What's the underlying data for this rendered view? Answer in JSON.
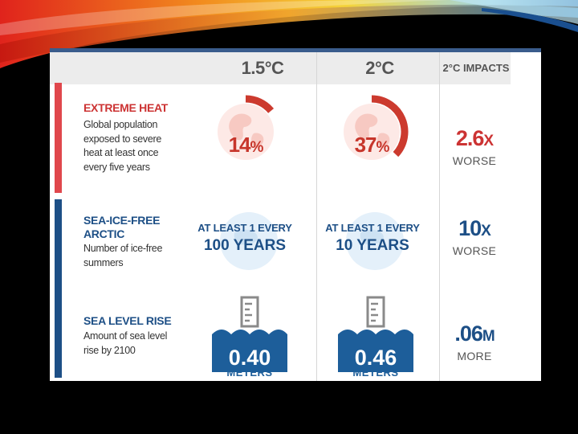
{
  "header": {
    "col1": "1.5°C",
    "col2": "2°C",
    "col3": "2°C IMPACTS"
  },
  "rows": {
    "heat": {
      "title": "EXTREME HEAT",
      "description": "Global population exposed to severe heat at least once every five years",
      "val15": "14",
      "val2": "37",
      "unit": "%",
      "val15_fraction": 0.14,
      "val2_fraction": 0.37,
      "impact_value": "2.6",
      "impact_suffix": "X",
      "impact_word": "WORSE"
    },
    "arctic": {
      "title_line1": "SEA-ICE-FREE",
      "title_line2": "ARCTIC",
      "description": "Number of ice-free summers",
      "val15_line1": "AT LEAST 1 EVERY",
      "val15_line2": "100 YEARS",
      "val2_line1": "AT LEAST 1 EVERY",
      "val2_line2": "10 YEARS",
      "impact_value": "10",
      "impact_suffix": "X",
      "impact_word": "WORSE"
    },
    "sea": {
      "title": "SEA LEVEL RISE",
      "description": "Amount of sea level rise by 2100",
      "val15": "0.40",
      "val2": "0.46",
      "unit_word": "METERS",
      "impact_value": ".06",
      "impact_suffix": "M",
      "impact_word": "MORE"
    }
  },
  "colors": {
    "heat_accent": "#e0474c",
    "arc_red": "#cc3a2e",
    "blue_accent": "#1d4f86",
    "sea_box": "#1d5e9a"
  }
}
